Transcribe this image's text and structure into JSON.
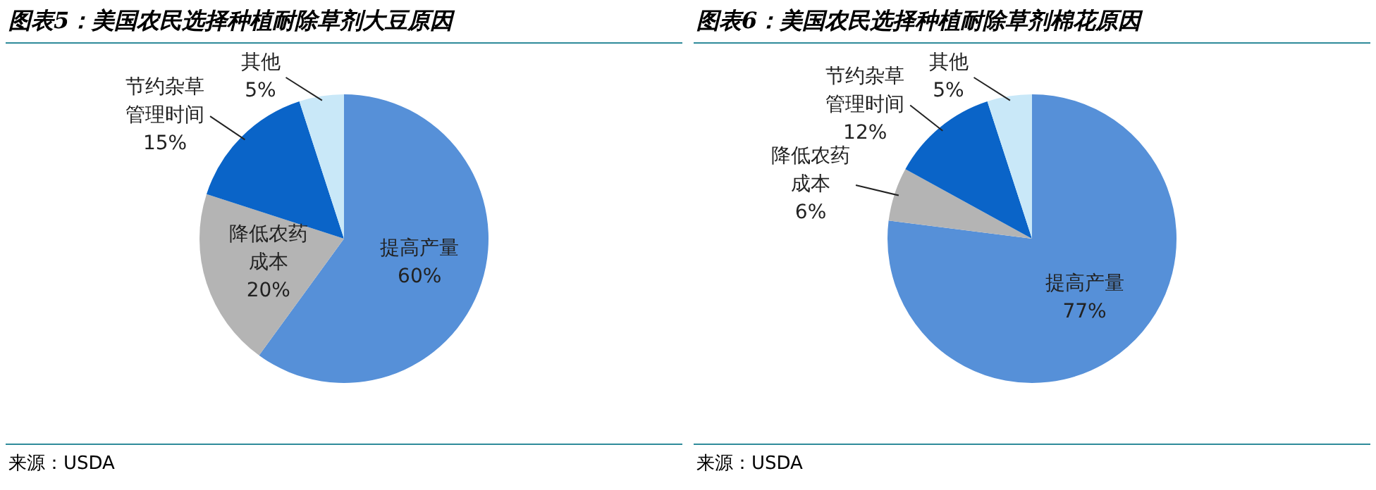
{
  "chart_data": [
    {
      "type": "pie",
      "title": "图表5：美国农民选择种植耐除草剂大豆原因",
      "categories": [
        "提高产量",
        "降低农药成本",
        "节约杂草管理时间",
        "其他"
      ],
      "values": [
        60,
        20,
        15,
        5
      ],
      "value_labels": [
        "60%",
        "20%",
        "15%",
        "5%"
      ],
      "colors": [
        "#5690d8",
        "#b4b4b4",
        "#0a64c8",
        "#c9e8f8"
      ],
      "legend": false,
      "annotations": [
        "来源：USDA"
      ]
    },
    {
      "type": "pie",
      "title": "图表6：美国农民选择种植耐除草剂棉花原因",
      "categories": [
        "提高产量",
        "降低农药成本",
        "节约杂草管理时间",
        "其他"
      ],
      "values": [
        77,
        6,
        12,
        5
      ],
      "value_labels": [
        "77%",
        "6%",
        "12%",
        "5%"
      ],
      "colors": [
        "#5690d8",
        "#b4b4b4",
        "#0a64c8",
        "#c9e8f8"
      ],
      "legend": false,
      "annotations": [
        "来源：USDA"
      ]
    }
  ]
}
